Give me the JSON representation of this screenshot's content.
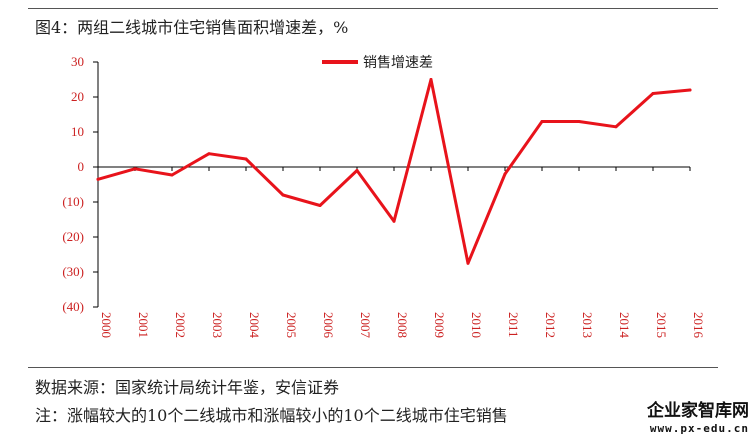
{
  "header": {
    "title": "图4：两组二线城市住宅销售面积增速差，%"
  },
  "footer": {
    "source": "数据来源：国家统计局统计年鉴，安信证券",
    "note": "注：涨幅较大的10个二线城市和涨幅较小的10个二线城市住宅销售"
  },
  "watermark": {
    "name": "企业家智库网",
    "url": "www.px-edu.cn"
  },
  "colors": {
    "series": "#e8131b",
    "axis": "#000000",
    "tick_text": "#cc2222"
  },
  "chart_data": {
    "type": "line",
    "title": "图4：两组二线城市住宅销售面积增速差，%",
    "xlabel": "",
    "ylabel": "",
    "categories": [
      "2000",
      "2001",
      "2002",
      "2003",
      "2004",
      "2005",
      "2006",
      "2007",
      "2008",
      "2009",
      "2010",
      "2011",
      "2012",
      "2013",
      "2014",
      "2015",
      "2016"
    ],
    "y_tick_labels": [
      "30",
      "20",
      "10",
      "0",
      "(10)",
      "(20)",
      "(30)",
      "(40)"
    ],
    "y_ticks": [
      30,
      20,
      10,
      0,
      -10,
      -20,
      -30,
      -40
    ],
    "ylim": [
      -40,
      30
    ],
    "grid": false,
    "legend_position": "top",
    "series": [
      {
        "name": "销售增速差",
        "values": [
          -3.5,
          -0.5,
          -2.3,
          3.8,
          2.3,
          -8,
          -11,
          -1,
          -15.5,
          25,
          -27.5,
          -2,
          13,
          13,
          11.5,
          21,
          22
        ]
      }
    ]
  }
}
